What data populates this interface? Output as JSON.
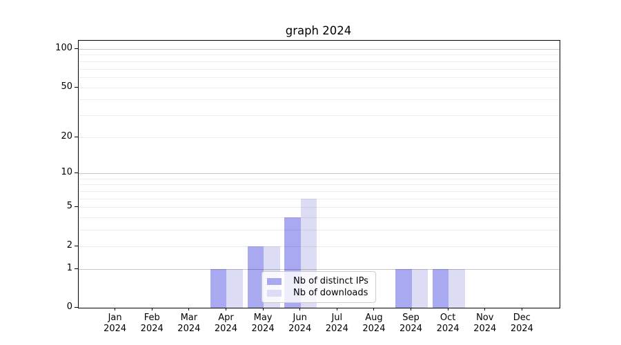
{
  "chart_data": {
    "type": "bar",
    "title": "graph 2024",
    "categories": [
      "Jan",
      "Feb",
      "Mar",
      "Apr",
      "May",
      "Jun",
      "Jul",
      "Aug",
      "Sep",
      "Oct",
      "Nov",
      "Dec"
    ],
    "category_year": "2024",
    "series": [
      {
        "name": "Nb of distinct IPs",
        "color": "#a9a9f1",
        "values": [
          0,
          0,
          0,
          1,
          2,
          4,
          0,
          0,
          1,
          1,
          0,
          0
        ]
      },
      {
        "name": "Nb of downloads",
        "color": "#dcdcf5",
        "values": [
          0,
          0,
          0,
          1,
          2,
          6,
          0,
          0,
          1,
          1,
          0,
          0
        ]
      }
    ],
    "xlabel": "",
    "ylabel": "",
    "y_axis": {
      "scale": "log10(1+x)",
      "tick_values": [
        0,
        1,
        2,
        5,
        10,
        20,
        50,
        100
      ],
      "major_gridline_values": [
        1,
        10,
        100
      ],
      "minor_gridline_values": [
        2,
        3,
        4,
        5,
        6,
        7,
        8,
        9,
        20,
        30,
        40,
        50,
        60,
        70,
        80,
        90
      ],
      "ylim": [
        0,
        116
      ]
    },
    "legend": {
      "position": "lower center",
      "entries": [
        "Nb of distinct IPs",
        "Nb of downloads"
      ]
    },
    "grid": "on",
    "colors": {
      "background": "#ffffff",
      "axis_box": "#000000",
      "grid_major": "#c9c9c9",
      "grid_minor": "#ececec"
    }
  }
}
